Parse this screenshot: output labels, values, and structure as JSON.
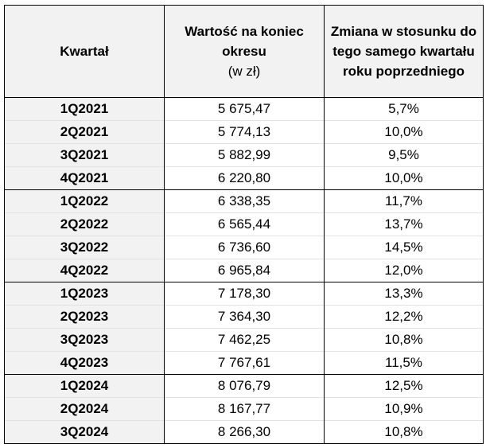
{
  "table": {
    "headers": {
      "quarter": "Kwartał",
      "value": "Wartość na koniec okresu",
      "value_unit": "(w zł)",
      "change": "Zmiana w stosunku do tego samego kwartału roku poprzedniego"
    },
    "rows": [
      {
        "quarter": "1Q2021",
        "value": "5 675,47",
        "change": "5,7%"
      },
      {
        "quarter": "2Q2021",
        "value": "5 774,13",
        "change": "10,0%"
      },
      {
        "quarter": "3Q2021",
        "value": "5 882,99",
        "change": "9,5%"
      },
      {
        "quarter": "4Q2021",
        "value": "6 220,80",
        "change": "10,0%"
      },
      {
        "quarter": "1Q2022",
        "value": "6 338,35",
        "change": "11,7%"
      },
      {
        "quarter": "2Q2022",
        "value": "6 565,44",
        "change": "13,7%"
      },
      {
        "quarter": "3Q2022",
        "value": "6 736,60",
        "change": "14,5%"
      },
      {
        "quarter": "4Q2022",
        "value": "6 965,84",
        "change": "12,0%"
      },
      {
        "quarter": "1Q2023",
        "value": "7 178,30",
        "change": "13,3%"
      },
      {
        "quarter": "2Q2023",
        "value": "7 364,30",
        "change": "12,2%"
      },
      {
        "quarter": "3Q2023",
        "value": "7 462,25",
        "change": "10,8%"
      },
      {
        "quarter": "4Q2023",
        "value": "7 767,61",
        "change": "11,5%"
      },
      {
        "quarter": "1Q2024",
        "value": "8 076,79",
        "change": "12,5%"
      },
      {
        "quarter": "2Q2024",
        "value": "8 167,77",
        "change": "10,9%"
      },
      {
        "quarter": "3Q2024",
        "value": "8 266,30",
        "change": "10,8%"
      }
    ]
  }
}
